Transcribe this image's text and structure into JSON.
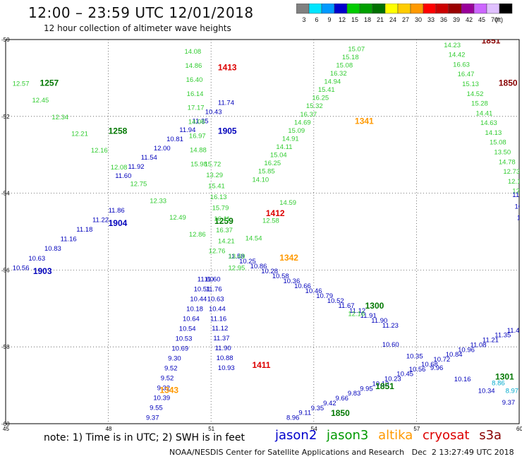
{
  "header": {
    "title": "12:00 – 23:59 UTC 12/01/2018",
    "subtitle": "12 hour collection of altimeter wave heights"
  },
  "color_scale": {
    "unit": "(ft)",
    "bins": [
      {
        "label": "3",
        "color": "#808080"
      },
      {
        "label": "6",
        "color": "#00e5ff"
      },
      {
        "label": "9",
        "color": "#0099ff"
      },
      {
        "label": "12",
        "color": "#0000cc"
      },
      {
        "label": "15",
        "color": "#00cc00"
      },
      {
        "label": "18",
        "color": "#00a000"
      },
      {
        "label": "21",
        "color": "#007000"
      },
      {
        "label": "24",
        "color": "#ffff00"
      },
      {
        "label": "27",
        "color": "#ffcc00"
      },
      {
        "label": "30",
        "color": "#ff9900"
      },
      {
        "label": "33",
        "color": "#ff0000"
      },
      {
        "label": "36",
        "color": "#cc0000"
      },
      {
        "label": "39",
        "color": "#990000"
      },
      {
        "label": "42",
        "color": "#990099"
      },
      {
        "label": "45",
        "color": "#cc66ff"
      },
      {
        "label": "70",
        "color": "#e0c0ff"
      },
      {
        "label": "",
        "color": "#000000"
      }
    ]
  },
  "axes": {
    "lat_labels": [
      "-50",
      "-52",
      "-54",
      "-56",
      "-58",
      "-60"
    ],
    "lon_labels": [
      "45",
      "48",
      "51",
      "54",
      "57",
      "60"
    ]
  },
  "tracks": [
    {
      "sat": "jason2",
      "color": "#0000bb",
      "lat1": -56.0,
      "lon1": 45.2,
      "lat2": -54.5,
      "lon2": 48.0,
      "values": [
        "10.56",
        "10.63",
        "10.83",
        "11.16",
        "11.18",
        "11.22",
        "11.86"
      ],
      "time": "1904",
      "time_lat": -54.85,
      "time_lon": 48.0
    },
    {
      "sat": "jason2",
      "color": "#0000bb",
      "lat1": -56.5,
      "lon1": 45.0,
      "lat2": -56.5,
      "lon2": 45.0,
      "values": [],
      "time": "1903",
      "time_lat": -56.1,
      "time_lon": 45.8
    },
    {
      "sat": "jason2",
      "color": "#0000bb",
      "lat1": -53.6,
      "lon1": 48.2,
      "lat2": -51.7,
      "lon2": 51.2,
      "values": [
        "11.60",
        "11.92",
        "11.54",
        "12.00",
        "10.81",
        "11.94",
        "11.35",
        "10.43",
        "11.74"
      ],
      "time": "1905",
      "time_lat": -52.45,
      "time_lon": 51.2
    },
    {
      "sat": "jason2",
      "color": "#0000bb",
      "lat1": -59.9,
      "lon1": 49.1,
      "lat2": -56.3,
      "lon2": 50.6,
      "values": [
        "9.37",
        "9.55",
        "10.39",
        "9.32",
        "9.52",
        "9.52",
        "9.30",
        "10.69",
        "10.53",
        "10.54",
        "10.64",
        "10.18",
        "10.44",
        "10.51",
        "11.60"
      ],
      "time": "",
      "time_lat": 0,
      "time_lon": 0
    },
    {
      "sat": "jason2",
      "color": "#0000bb",
      "lat1": -56.3,
      "lon1": 50.8,
      "lat2": -58.6,
      "lon2": 51.2,
      "values": [
        "11.60",
        "11.76",
        "10.63",
        "10.44",
        "11.16",
        "11.12",
        "11.37",
        "11.90",
        "10.88",
        "10.93"
      ],
      "time": "",
      "time_lat": 0,
      "time_lon": 0
    },
    {
      "sat": "jason2",
      "color": "#0000bb",
      "lat1": -55.7,
      "lon1": 51.5,
      "lat2": -57.5,
      "lon2": 56.0,
      "values": [
        "11.58",
        "10.25",
        "10.86",
        "10.28",
        "10.58",
        "10.36",
        "10.66",
        "10.46",
        "10.79",
        "10.52",
        "11.67",
        "11.12",
        "11.91",
        "11.90",
        "11.23"
      ],
      "time": "",
      "time_lat": 0,
      "time_lon": 0
    },
    {
      "sat": "jason2",
      "color": "#0000bb",
      "lat1": -58.0,
      "lon1": 56.0,
      "lat2": -59.5,
      "lon2": 59.5,
      "values": [
        "10.60",
        "10.35",
        "9.96",
        "10.16",
        "10.34",
        "9.37"
      ],
      "time": "",
      "time_lat": 0,
      "time_lon": 0
    },
    {
      "sat": "jason2",
      "color": "#0000bb",
      "lat1": -59.9,
      "lon1": 53.2,
      "lat2": -57.5,
      "lon2": 60.0,
      "values": [
        "8.96",
        "9.11",
        "9.35",
        "9.42",
        "9.66",
        "9.83",
        "9.95",
        "10.13",
        "10.23",
        "10.45",
        "10.56",
        "10.68",
        "10.72",
        "10.84",
        "10.96",
        "11.08",
        "11.21",
        "11.35",
        "11.48",
        "11.56"
      ],
      "time": "",
      "time_lat": 0,
      "time_lon": 0
    },
    {
      "sat": "jason3",
      "color": "#007700",
      "lat1": -51.4,
      "lon1": 45.2,
      "lat2": -51.4,
      "lon2": 45.2,
      "values": [],
      "time": "1257",
      "time_lat": -51.2,
      "time_lon": 46.0
    },
    {
      "sat": "jason3",
      "color": "#007700",
      "lat1": -52.6,
      "lon1": 47.5,
      "lat2": -52.6,
      "lon2": 47.5,
      "values": [],
      "time": "1258",
      "time_lat": -52.45,
      "time_lon": 48.0
    },
    {
      "sat": "jason3",
      "color": "#007700",
      "lat1": -54.8,
      "lon1": 51.0,
      "lat2": -54.8,
      "lon2": 51.0,
      "values": [],
      "time": "1259",
      "time_lat": -54.8,
      "time_lon": 51.1
    },
    {
      "sat": "jason3",
      "color": "#007700",
      "lat1": -57.1,
      "lon1": 55.5,
      "lat2": -57.1,
      "lon2": 55.5,
      "values": [],
      "time": "1300",
      "time_lat": -57.0,
      "time_lon": 55.5
    },
    {
      "sat": "jason3",
      "color": "#007700",
      "lat1": -59.0,
      "lon1": 59.3,
      "lat2": -59.0,
      "lon2": 59.3,
      "values": [],
      "time": "1301",
      "time_lat": -58.85,
      "time_lon": 59.3
    },
    {
      "sat": "jason3",
      "color": "#007700",
      "lat1": -59.2,
      "lon1": 55.8,
      "lat2": -59.2,
      "lon2": 55.8,
      "values": [],
      "time": "1851",
      "time_lat": -59.1,
      "time_lon": 55.8
    },
    {
      "sat": "jason3",
      "color": "#007700",
      "lat1": -59.9,
      "lon1": 53.8,
      "lat2": -59.9,
      "lon2": 53.8,
      "values": [],
      "time": "1850",
      "time_lat": -59.8,
      "time_lon": 54.5
    },
    {
      "sat": "jason3-light",
      "color": "#33cc33",
      "lat1": -50.0,
      "lon1": 50.2,
      "lat2": -53.3,
      "lon2": 50.4,
      "values": [
        "15.14",
        "14.08",
        "14.86",
        "16.40",
        "16.14",
        "17.17",
        "14.06",
        "16.97",
        "14.88",
        "15.98"
      ],
      "time": "",
      "time_lat": 0,
      "time_lon": 0
    },
    {
      "sat": "jason3-light",
      "color": "#33cc33",
      "lat1": -53.3,
      "lon1": 50.8,
      "lat2": -55.3,
      "lon2": 51.2,
      "values": [
        "15.72",
        "13.29",
        "15.41",
        "16.13",
        "15.79",
        "16.11",
        "16.37",
        "14.21"
      ],
      "time": "",
      "time_lat": 0,
      "time_lon": 0
    },
    {
      "sat": "jason3-light",
      "color": "#33cc33",
      "lat1": -53.7,
      "lon1": 52.2,
      "lat2": -50.3,
      "lon2": 55.0,
      "values": [
        "14.10",
        "15.85",
        "16.25",
        "15.04",
        "14.11",
        "14.91",
        "15.09",
        "14.69",
        "16.37",
        "15.32",
        "16.25",
        "15.41",
        "14.94",
        "16.32",
        "15.08",
        "15.18",
        "15.07"
      ],
      "time": "1340",
      "time_lat": -50.0,
      "time_lon": 55.5
    },
    {
      "sat": "jason3-light",
      "color": "#33cc33",
      "lat1": -55.7,
      "lon1": 51.5,
      "lat2": -54.3,
      "lon2": 53.0,
      "values": [
        "13.49",
        "14.54",
        "12.58",
        "14.59"
      ],
      "time": "",
      "time_lat": 0,
      "time_lon": 0
    },
    {
      "sat": "jason3-light",
      "color": "#33cc33",
      "lat1": -50.2,
      "lon1": 57.8,
      "lat2": -54.0,
      "lon2": 59.8,
      "values": [
        "14.23",
        "14.42",
        "16.63",
        "16.47",
        "15.13",
        "14.52",
        "15.28",
        "14.41",
        "14.63",
        "14.13",
        "15.08",
        "13.50",
        "14.78",
        "12.73",
        "12.13",
        "12.89"
      ],
      "time": "",
      "time_lat": 0,
      "time_lon": 0
    },
    {
      "sat": "jason3-light",
      "color": "#33cc33",
      "lat1": -51.2,
      "lon1": 45.2,
      "lat2": -56.0,
      "lon2": 51.5,
      "values": [
        "12.57",
        "12.45",
        "12.34",
        "12.21",
        "12.16",
        "12.08",
        "12.75",
        "12.33",
        "12.49",
        "12.86",
        "12.76",
        "12.95"
      ],
      "time": "",
      "time_lat": 0,
      "time_lon": 0
    },
    {
      "sat": "jason3-light",
      "color": "#33cc33",
      "lat1": -57.2,
      "lon1": 55.0,
      "lat2": -57.2,
      "lon2": 55.0,
      "values": [
        "12.16"
      ],
      "time": "",
      "time_lat": 0,
      "time_lon": 0
    },
    {
      "sat": "saral-light",
      "color": "#00aacc",
      "lat1": -59.0,
      "lon1": 59.2,
      "lat2": -59.4,
      "lon2": 60.0,
      "values": [
        "8.86",
        "8.97",
        "8.1"
      ],
      "time": "",
      "time_lat": 0,
      "time_lon": 0
    },
    {
      "sat": "jason2",
      "color": "#0000bb",
      "lat1": -54.1,
      "lon1": 59.8,
      "lat2": -55.0,
      "lon2": 60.0,
      "values": [
        "11.55",
        "10.75",
        "11.69",
        "11."
      ],
      "time": "",
      "time_lat": 0,
      "time_lon": 0
    }
  ],
  "time_labels": [
    {
      "text": "1413",
      "color": "#dd0000",
      "lat": -50.8,
      "lon": 51.2
    },
    {
      "text": "1412",
      "color": "#dd0000",
      "lat": -54.6,
      "lon": 52.6
    },
    {
      "text": "1411",
      "color": "#dd0000",
      "lat": -58.55,
      "lon": 52.2
    },
    {
      "text": "1341",
      "color": "#ff9900",
      "lat": -52.2,
      "lon": 55.2
    },
    {
      "text": "1342",
      "color": "#ff9900",
      "lat": -55.75,
      "lon": 53.0
    },
    {
      "text": "1343",
      "color": "#ff9900",
      "lat": -59.2,
      "lon": 49.5
    },
    {
      "text": "1851",
      "color": "#880000",
      "lat": -50.1,
      "lon": 58.9
    },
    {
      "text": "1850",
      "color": "#880000",
      "lat": -51.2,
      "lon": 59.4
    }
  ],
  "legend": {
    "note": "note: 1) Time is in UTC; 2) SWH is in feet",
    "satellites": [
      {
        "name": "jason2",
        "color": "#0000cc"
      },
      {
        "name": "jason3",
        "color": "#009900"
      },
      {
        "name": "altika",
        "color": "#ff9900"
      },
      {
        "name": "cryosat",
        "color": "#dd0000"
      },
      {
        "name": "s3a",
        "color": "#880000"
      }
    ]
  },
  "footer": {
    "org": "NOAA/NESDIS Center for Satellite Applications and Research",
    "timestamp": "Dec  2 13:27:49 UTC 2018"
  }
}
